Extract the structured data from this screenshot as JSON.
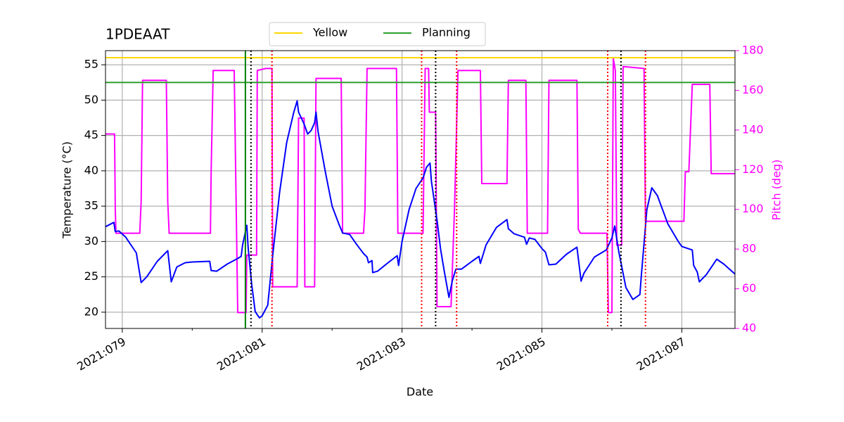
{
  "chart_data": {
    "type": "line",
    "title": "1PDEAAT",
    "x_label": "Date",
    "y_label": "Temperature (°C)",
    "y2_label": "Pitch (deg)",
    "y2_color": "#ff00ff",
    "grid": true,
    "xlim": [
      78.76,
      87.76
    ],
    "xticks": [
      {
        "value": 79,
        "label": "2021:079"
      },
      {
        "value": 81,
        "label": "2021:081"
      },
      {
        "value": 83,
        "label": "2021:083"
      },
      {
        "value": 85,
        "label": "2021:085"
      },
      {
        "value": 87,
        "label": "2021:087"
      }
    ],
    "xminorticks": [
      80,
      82,
      84,
      86
    ],
    "ylim": [
      17.7,
      57
    ],
    "yticks": [
      20,
      25,
      30,
      35,
      40,
      45,
      50,
      55
    ],
    "y2lim": [
      40,
      180
    ],
    "y2ticks": [
      40,
      60,
      80,
      100,
      120,
      140,
      160,
      180
    ],
    "reference_lines": [
      {
        "name": "Yellow",
        "color": "#ffd700",
        "value": 56
      },
      {
        "name": "Planning",
        "color": "#2ca02c",
        "value": 52.5
      }
    ],
    "vlines": [
      {
        "x": 80.76,
        "color": "#008000",
        "style": "solid"
      },
      {
        "x": 80.84,
        "color": "#000000",
        "style": "dotted"
      },
      {
        "x": 83.48,
        "color": "#000000",
        "style": "dotted"
      },
      {
        "x": 86.13,
        "color": "#000000",
        "style": "dotted"
      },
      {
        "x": 81.14,
        "color": "#ff0000",
        "style": "dotted"
      },
      {
        "x": 83.28,
        "color": "#ff0000",
        "style": "dotted"
      },
      {
        "x": 83.78,
        "color": "#ff0000",
        "style": "dotted"
      },
      {
        "x": 85.94,
        "color": "#ff0000",
        "style": "dotted"
      },
      {
        "x": 86.48,
        "color": "#ff0000",
        "style": "dotted"
      }
    ],
    "series": [
      {
        "color": "#0000ff",
        "x": [
          78.76,
          78.88,
          78.9,
          78.95,
          79.05,
          79.2,
          79.27,
          79.35,
          79.5,
          79.65,
          79.7,
          79.78,
          79.9,
          80.0,
          80.25,
          80.27,
          80.35,
          80.5,
          80.65,
          80.7,
          80.72,
          80.78,
          80.8,
          80.85,
          80.9,
          80.96,
          81.0,
          81.08,
          81.15,
          81.25,
          81.35,
          81.45,
          81.5,
          81.52,
          81.6,
          81.65,
          81.7,
          81.75,
          81.77,
          81.8,
          81.9,
          82.0,
          82.1,
          82.15,
          82.25,
          82.35,
          82.45,
          82.5,
          82.52,
          82.57,
          82.58,
          82.65,
          82.8,
          82.93,
          82.95,
          83.0,
          83.1,
          83.2,
          83.3,
          83.35,
          83.4,
          83.42,
          83.5,
          83.55,
          83.6,
          83.67,
          83.72,
          83.77,
          83.85,
          84.0,
          84.1,
          84.12,
          84.2,
          84.35,
          84.5,
          84.52,
          84.6,
          84.75,
          84.78,
          84.82,
          84.9,
          85.0,
          85.05,
          85.1,
          85.2,
          85.35,
          85.5,
          85.56,
          85.6,
          85.75,
          85.92,
          86.0,
          86.04,
          86.1,
          86.2,
          86.3,
          86.4,
          86.42,
          86.5,
          86.57,
          86.65,
          86.8,
          86.95,
          87.0,
          87.15,
          87.17,
          87.22,
          87.25,
          87.35,
          87.5,
          87.6,
          87.76
        ],
        "values": [
          32.1,
          32.7,
          31.4,
          31.5,
          30.6,
          28.4,
          24.2,
          25.0,
          27.2,
          28.7,
          24.3,
          26.4,
          27.0,
          27.1,
          27.2,
          25.9,
          25.8,
          26.8,
          27.6,
          27.9,
          29.5,
          32.3,
          29.0,
          24.0,
          20.1,
          19.2,
          19.5,
          21.0,
          28.0,
          37.0,
          44.0,
          48.2,
          49.9,
          48.3,
          46.6,
          45.2,
          45.7,
          46.8,
          48.3,
          45.5,
          40.0,
          35.0,
          32.4,
          31.2,
          31.0,
          29.6,
          28.3,
          27.8,
          27.0,
          27.3,
          25.6,
          25.8,
          27.0,
          28.0,
          26.6,
          30.0,
          34.5,
          37.5,
          39.0,
          40.5,
          41.1,
          38.5,
          33.0,
          29.0,
          26.0,
          22.1,
          24.5,
          26.1,
          26.1,
          27.2,
          27.9,
          26.9,
          29.5,
          32.0,
          33.1,
          31.8,
          31.1,
          30.6,
          29.6,
          30.5,
          30.3,
          29.0,
          28.5,
          26.7,
          26.8,
          28.2,
          29.2,
          24.4,
          25.5,
          27.8,
          28.8,
          30.5,
          32.2,
          28.5,
          23.5,
          21.8,
          22.5,
          25.0,
          34.5,
          37.6,
          36.5,
          32.5,
          30.0,
          29.3,
          28.8,
          26.6,
          25.7,
          24.3,
          25.3,
          27.5,
          26.8,
          25.4
        ]
      },
      {
        "color": "#ff00ff",
        "axis": "y2",
        "x": [
          78.76,
          78.89,
          78.9,
          78.91,
          79.25,
          79.27,
          79.29,
          79.63,
          79.65,
          79.67,
          80.26,
          80.27,
          80.3,
          80.6,
          80.65,
          80.77,
          80.78,
          80.92,
          80.93,
          81.05,
          81.14,
          81.15,
          81.5,
          81.52,
          81.6,
          81.61,
          81.75,
          81.77,
          82.13,
          82.15,
          82.45,
          82.47,
          82.5,
          82.92,
          82.94,
          83.3,
          83.33,
          83.38,
          83.39,
          83.48,
          83.5,
          83.7,
          83.75,
          83.8,
          84.12,
          84.14,
          84.5,
          84.52,
          84.77,
          84.79,
          85.08,
          85.1,
          85.5,
          85.52,
          85.55,
          85.93,
          85.95,
          86.0,
          86.02,
          86.05,
          86.07,
          86.14,
          86.16,
          86.46,
          86.48,
          87.03,
          87.05,
          87.1,
          87.15,
          87.4,
          87.42,
          87.76
        ],
        "values": [
          138,
          138,
          100,
          88,
          88,
          104,
          165,
          165,
          104,
          88,
          88,
          119,
          170,
          170,
          48,
          48,
          77,
          77,
          170,
          171,
          171,
          61,
          61,
          146,
          146,
          61,
          61,
          166,
          166,
          88,
          88,
          100,
          171,
          171,
          88,
          88,
          171,
          171,
          149,
          149,
          51,
          51,
          100,
          170,
          170,
          113,
          113,
          165,
          165,
          88,
          88,
          165,
          165,
          90,
          88,
          88,
          48,
          48,
          176,
          170,
          82,
          82,
          172,
          171,
          94,
          94,
          119,
          119,
          163,
          163,
          118,
          118
        ]
      }
    ]
  }
}
